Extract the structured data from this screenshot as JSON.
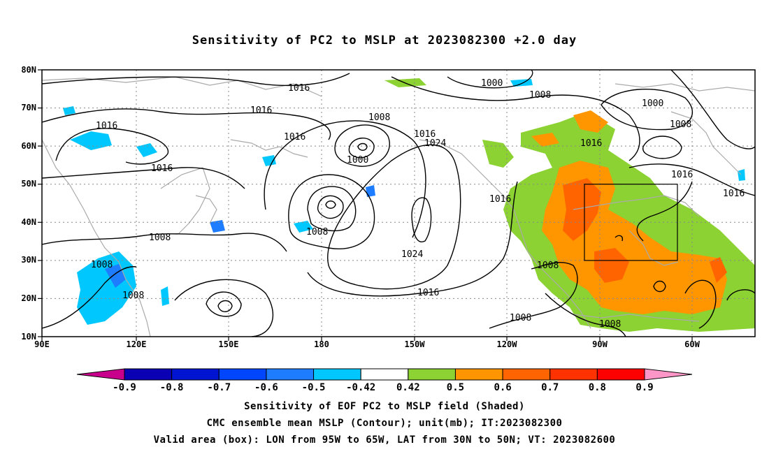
{
  "title": "Sensitivity of PC2 to MSLP at 2023082300 +2.0 day",
  "lat_labels": [
    "80N",
    "70N",
    "60N",
    "50N",
    "40N",
    "30N",
    "20N",
    "10N"
  ],
  "lon_labels": [
    "90E",
    "120E",
    "150E",
    "180",
    "150W",
    "120W",
    "90W",
    "60W"
  ],
  "colorbar": {
    "labels": [
      "-0.9",
      "-0.8",
      "-0.7",
      "-0.6",
      "-0.5",
      "-0.42",
      "0.42",
      "0.5",
      "0.6",
      "0.7",
      "0.8",
      "0.9"
    ],
    "colors": [
      "#c8008c",
      "#0a00b4",
      "#0014d2",
      "#0046ff",
      "#1e7cff",
      "#00c8ff",
      "#ffffff",
      "#8cd232",
      "#ff9600",
      "#ff6400",
      "#ff3200",
      "#ff0000",
      "#ff96c8"
    ]
  },
  "shading_colors": {
    "positive_low": "#8cd232",
    "positive_mid": "#ff9600",
    "positive_high": "#ff6400",
    "negative": "#00c8ff",
    "negative_strong": "#1e7cff",
    "coast": "#aaaaaa"
  },
  "contour_labels": [
    {
      "text": "1016"
    },
    {
      "text": "1016"
    },
    {
      "text": "1016"
    },
    {
      "text": "1016"
    },
    {
      "text": "1016"
    },
    {
      "text": "1008"
    },
    {
      "text": "1000"
    },
    {
      "text": "1016"
    },
    {
      "text": "1024"
    },
    {
      "text": "1000"
    },
    {
      "text": "1008"
    },
    {
      "text": "1000"
    },
    {
      "text": "1008"
    },
    {
      "text": "1016"
    },
    {
      "text": "1016"
    },
    {
      "text": "1016"
    },
    {
      "text": "1016"
    },
    {
      "text": "1008"
    },
    {
      "text": "1008"
    },
    {
      "text": "1008"
    },
    {
      "text": "1008"
    },
    {
      "text": "1024"
    },
    {
      "text": "1016"
    },
    {
      "text": "1008"
    },
    {
      "text": "1008"
    },
    {
      "text": "1008"
    }
  ],
  "valid_box": {
    "lon_from": "95W",
    "lon_to": "65W",
    "lat_from": "30N",
    "lat_to": "50N"
  },
  "captions": [
    "Sensitivity of EOF PC2 to MSLP field (Shaded)",
    "CMC ensemble mean MSLP (Contour); unit(mb); IT:2023082300",
    "Valid area (box): LON from 95W to 65W, LAT from 30N to 50N; VT: 2023082600"
  ]
}
